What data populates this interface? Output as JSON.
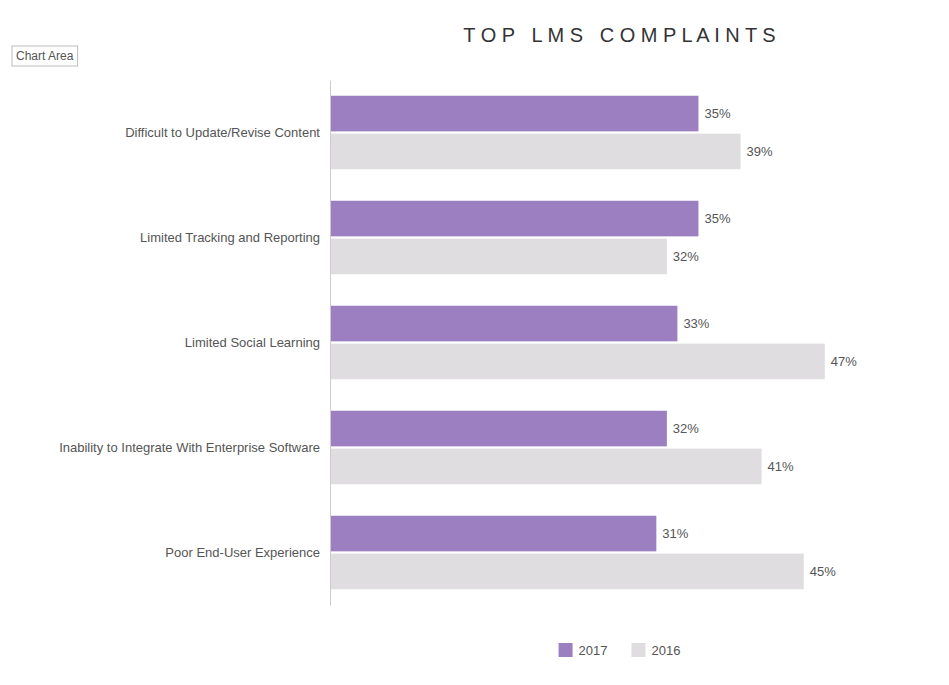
{
  "chart_data": {
    "type": "bar",
    "orientation": "horizontal",
    "title": "T O P   L M S   C O M P L A I N T S",
    "annotations": [
      "Chart Area"
    ],
    "categories": [
      "Poor End-User Experience",
      "Inability to Integrate With Enterprise Software",
      "Limited Social Learning",
      "Limited Tracking and Reporting",
      "Difficult to Update/Revise Content"
    ],
    "series": [
      {
        "name": "2017",
        "color": "#9b7fc0",
        "values": [
          31,
          32,
          33,
          35,
          35
        ],
        "value_labels": [
          "31%",
          "32%",
          "33%",
          "35%",
          "35%"
        ]
      },
      {
        "name": "2016",
        "color": "#e0dde0",
        "values": [
          45,
          41,
          47,
          32,
          39
        ],
        "value_labels": [
          "45%",
          "41%",
          "47%",
          "32%",
          "39%"
        ]
      }
    ],
    "xlim": [
      0,
      55
    ],
    "data_labels": true,
    "tick_labels": "y",
    "grid": false,
    "legend": "bottom"
  }
}
